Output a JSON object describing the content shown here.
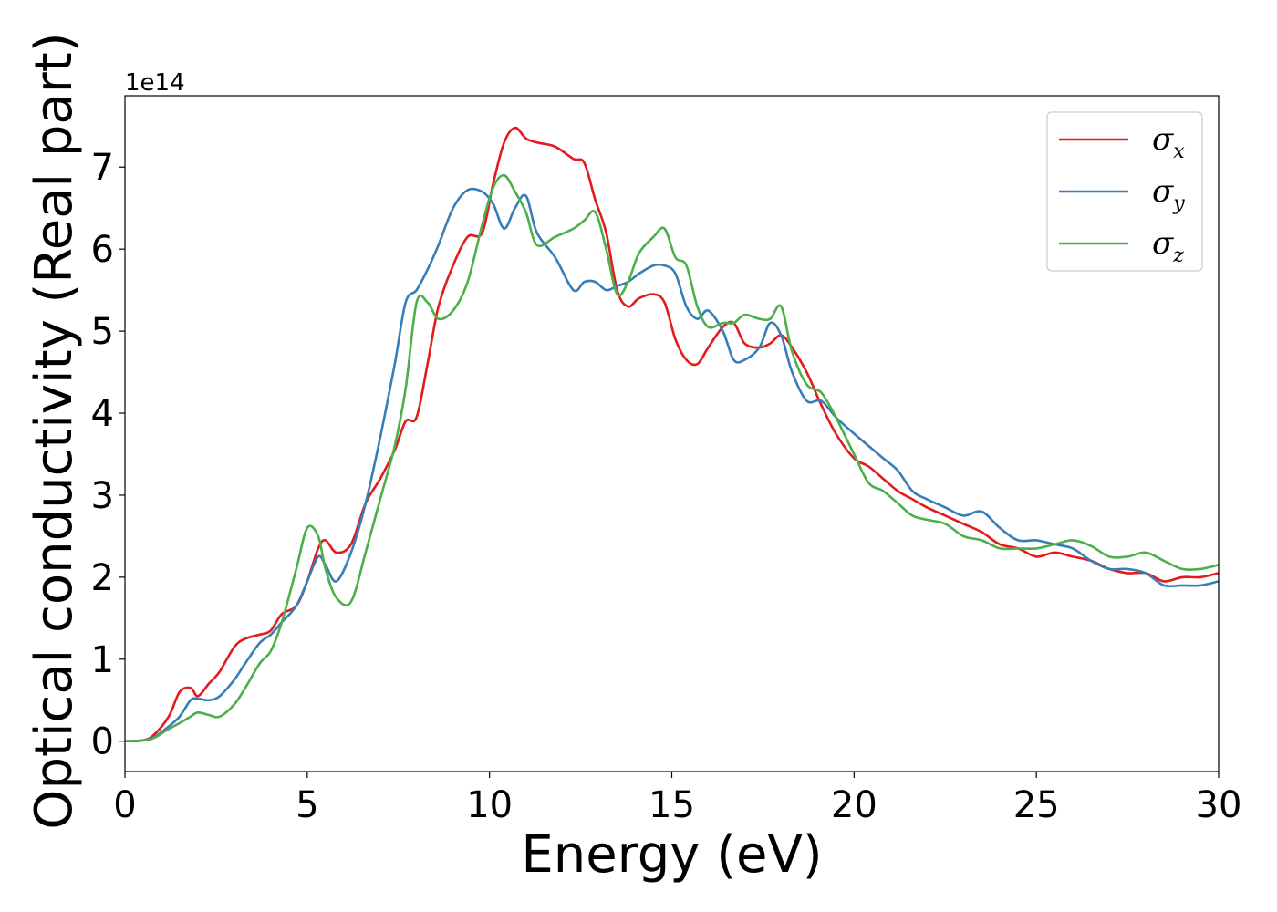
{
  "chart_data": {
    "type": "line",
    "title": "",
    "xlabel": "Energy (eV)",
    "ylabel": "Optical conductivity (Real part)",
    "y_offset_label": "1e14",
    "xlim": [
      0,
      30
    ],
    "ylim": [
      -0.37,
      7.87
    ],
    "xticks": [
      "0",
      "5",
      "10",
      "15",
      "20",
      "25",
      "30"
    ],
    "yticks": [
      "0",
      "1",
      "2",
      "3",
      "4",
      "5",
      "6",
      "7"
    ],
    "grid": false,
    "legend_position": "top-right",
    "series": [
      {
        "name": "σx",
        "symbol": "σ",
        "sub": "x",
        "color": "#e41a1c",
        "x": [
          0,
          0.5,
          0.8,
          1.2,
          1.5,
          1.8,
          2.0,
          2.3,
          2.6,
          3.0,
          3.3,
          3.7,
          4.0,
          4.3,
          4.7,
          5.0,
          5.3,
          5.5,
          5.8,
          6.2,
          6.6,
          7.0,
          7.4,
          7.7,
          8.0,
          8.3,
          8.6,
          9.0,
          9.4,
          9.8,
          10.1,
          10.4,
          10.7,
          11.0,
          11.3,
          11.8,
          12.3,
          12.6,
          12.9,
          13.2,
          13.5,
          13.8,
          14.1,
          14.5,
          14.8,
          15.1,
          15.4,
          15.7,
          16.0,
          16.4,
          16.7,
          17.0,
          17.4,
          17.7,
          18.0,
          18.3,
          18.7,
          19.1,
          19.5,
          20.0,
          20.4,
          20.8,
          21.2,
          21.6,
          22.0,
          22.5,
          23.0,
          23.5,
          24.0,
          24.5,
          25.0,
          25.5,
          26.0,
          26.5,
          27.0,
          27.5,
          28.0,
          28.5,
          29.0,
          29.5,
          30.0
        ],
        "values": [
          0,
          0.01,
          0.08,
          0.3,
          0.6,
          0.65,
          0.55,
          0.7,
          0.85,
          1.15,
          1.25,
          1.3,
          1.35,
          1.55,
          1.65,
          1.95,
          2.35,
          2.45,
          2.3,
          2.4,
          2.9,
          3.2,
          3.55,
          3.9,
          3.95,
          4.6,
          5.3,
          5.8,
          6.15,
          6.2,
          6.8,
          7.3,
          7.48,
          7.35,
          7.3,
          7.25,
          7.1,
          7.05,
          6.6,
          6.2,
          5.5,
          5.3,
          5.4,
          5.45,
          5.35,
          4.9,
          4.65,
          4.6,
          4.8,
          5.05,
          5.1,
          4.85,
          4.8,
          4.85,
          4.95,
          4.8,
          4.5,
          4.1,
          3.75,
          3.45,
          3.35,
          3.2,
          3.05,
          2.95,
          2.85,
          2.75,
          2.65,
          2.55,
          2.4,
          2.35,
          2.25,
          2.3,
          2.25,
          2.2,
          2.1,
          2.05,
          2.05,
          1.95,
          2.0,
          2.0,
          2.05
        ]
      },
      {
        "name": "σy",
        "symbol": "σ",
        "sub": "y",
        "color": "#377eb8",
        "x": [
          0,
          0.5,
          0.8,
          1.2,
          1.5,
          1.8,
          2.0,
          2.3,
          2.6,
          3.0,
          3.3,
          3.7,
          4.0,
          4.3,
          4.7,
          5.0,
          5.3,
          5.5,
          5.8,
          6.2,
          6.6,
          7.0,
          7.4,
          7.7,
          8.0,
          8.3,
          8.6,
          9.0,
          9.4,
          9.8,
          10.1,
          10.4,
          10.7,
          11.0,
          11.3,
          11.8,
          12.3,
          12.6,
          12.9,
          13.2,
          13.5,
          13.8,
          14.1,
          14.5,
          14.8,
          15.1,
          15.4,
          15.7,
          16.0,
          16.4,
          16.7,
          17.0,
          17.4,
          17.7,
          18.0,
          18.3,
          18.7,
          19.1,
          19.5,
          20.0,
          20.4,
          20.8,
          21.2,
          21.6,
          22.0,
          22.5,
          23.0,
          23.5,
          24.0,
          24.5,
          25.0,
          25.5,
          26.0,
          26.5,
          27.0,
          27.5,
          28.0,
          28.5,
          29.0,
          29.5,
          30.0
        ],
        "values": [
          0,
          0.01,
          0.05,
          0.18,
          0.3,
          0.5,
          0.52,
          0.5,
          0.55,
          0.75,
          0.95,
          1.2,
          1.3,
          1.45,
          1.65,
          1.95,
          2.25,
          2.15,
          1.95,
          2.3,
          2.9,
          3.7,
          4.6,
          5.35,
          5.5,
          5.75,
          6.05,
          6.5,
          6.72,
          6.7,
          6.55,
          6.25,
          6.5,
          6.65,
          6.2,
          5.9,
          5.5,
          5.6,
          5.6,
          5.5,
          5.55,
          5.6,
          5.7,
          5.8,
          5.8,
          5.7,
          5.3,
          5.15,
          5.25,
          5.0,
          4.65,
          4.65,
          4.8,
          5.1,
          4.95,
          4.5,
          4.15,
          4.15,
          3.95,
          3.75,
          3.6,
          3.45,
          3.3,
          3.05,
          2.95,
          2.85,
          2.75,
          2.8,
          2.6,
          2.45,
          2.45,
          2.4,
          2.35,
          2.2,
          2.1,
          2.1,
          2.05,
          1.9,
          1.9,
          1.9,
          1.95
        ]
      },
      {
        "name": "σz",
        "symbol": "σ",
        "sub": "z",
        "color": "#4daf4a",
        "x": [
          0,
          0.5,
          0.8,
          1.2,
          1.5,
          1.8,
          2.0,
          2.3,
          2.6,
          3.0,
          3.3,
          3.7,
          4.0,
          4.3,
          4.7,
          5.0,
          5.3,
          5.5,
          5.8,
          6.2,
          6.6,
          7.0,
          7.4,
          7.7,
          8.0,
          8.3,
          8.6,
          9.0,
          9.4,
          9.8,
          10.1,
          10.4,
          10.7,
          11.0,
          11.3,
          11.8,
          12.3,
          12.6,
          12.9,
          13.2,
          13.5,
          13.8,
          14.1,
          14.5,
          14.8,
          15.1,
          15.4,
          15.7,
          16.0,
          16.4,
          16.7,
          17.0,
          17.4,
          17.7,
          18.0,
          18.3,
          18.7,
          19.1,
          19.5,
          20.0,
          20.4,
          20.8,
          21.2,
          21.6,
          22.0,
          22.5,
          23.0,
          23.5,
          24.0,
          24.5,
          25.0,
          25.5,
          26.0,
          26.5,
          27.0,
          27.5,
          28.0,
          28.5,
          29.0,
          29.5,
          30.0
        ],
        "values": [
          0,
          0.01,
          0.04,
          0.15,
          0.22,
          0.3,
          0.35,
          0.32,
          0.3,
          0.45,
          0.65,
          0.95,
          1.1,
          1.45,
          2.1,
          2.6,
          2.5,
          2.1,
          1.75,
          1.7,
          2.3,
          2.95,
          3.6,
          4.3,
          5.35,
          5.35,
          5.15,
          5.25,
          5.6,
          6.3,
          6.75,
          6.9,
          6.7,
          6.45,
          6.05,
          6.15,
          6.25,
          6.35,
          6.45,
          6.0,
          5.45,
          5.6,
          5.95,
          6.15,
          6.25,
          5.9,
          5.8,
          5.3,
          5.05,
          5.1,
          5.1,
          5.2,
          5.15,
          5.15,
          5.3,
          4.75,
          4.35,
          4.25,
          3.95,
          3.5,
          3.15,
          3.05,
          2.9,
          2.75,
          2.7,
          2.65,
          2.5,
          2.45,
          2.35,
          2.35,
          2.35,
          2.4,
          2.45,
          2.38,
          2.25,
          2.25,
          2.3,
          2.2,
          2.1,
          2.1,
          2.15
        ]
      }
    ]
  }
}
